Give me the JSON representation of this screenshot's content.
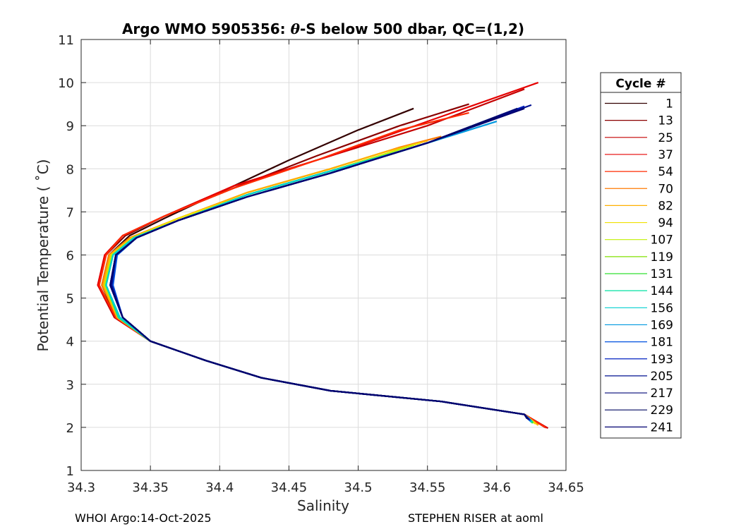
{
  "chart_data": {
    "type": "line",
    "title": "Argo WMO 5905356: θ-S below 500 dbar,  QC=(1,2)",
    "title_prefix": "Argo WMO 5905356: ",
    "title_theta": "θ",
    "title_suffix": "-S below 500 dbar,  QC=(1,2)",
    "xlabel": "Salinity",
    "ylabel": "Potential Temperature ( ˚C)",
    "xlim": [
      34.3,
      34.65
    ],
    "ylim": [
      1,
      11
    ],
    "xticks": [
      "34.3",
      "34.35",
      "34.4",
      "34.45",
      "34.5",
      "34.55",
      "34.6",
      "34.65"
    ],
    "yticks": [
      "1",
      "2",
      "3",
      "4",
      "5",
      "6",
      "7",
      "8",
      "9",
      "10",
      "11"
    ],
    "grid": true,
    "legend_placement": "right-outside",
    "legend_title": "Cycle #",
    "series": [
      {
        "name": "1",
        "color": "#330000",
        "x": [
          34.635,
          34.62,
          34.56,
          34.48,
          34.43,
          34.39,
          34.35,
          34.325,
          34.315,
          34.32,
          34.335,
          34.36,
          34.4,
          34.45,
          34.5,
          34.54
        ],
        "y": [
          2.0,
          2.3,
          2.6,
          2.85,
          3.15,
          3.55,
          4.0,
          4.55,
          5.3,
          6.0,
          6.45,
          6.85,
          7.45,
          8.2,
          8.9,
          9.4
        ]
      },
      {
        "name": "13",
        "color": "#8a0000",
        "x": [
          34.635,
          34.62,
          34.56,
          34.48,
          34.43,
          34.39,
          34.35,
          34.325,
          34.313,
          34.318,
          34.332,
          34.36,
          34.41,
          34.47,
          34.53,
          34.58
        ],
        "y": [
          2.0,
          2.3,
          2.6,
          2.85,
          3.15,
          3.55,
          4.0,
          4.55,
          5.3,
          6.0,
          6.45,
          6.9,
          7.55,
          8.3,
          9.0,
          9.5
        ]
      },
      {
        "name": "25",
        "color": "#c40000",
        "x": [
          34.637,
          34.62,
          34.56,
          34.48,
          34.43,
          34.39,
          34.35,
          34.324,
          34.312,
          34.317,
          34.33,
          34.36,
          34.41,
          34.48,
          34.55,
          34.62
        ],
        "y": [
          1.98,
          2.3,
          2.6,
          2.85,
          3.15,
          3.55,
          4.0,
          4.55,
          5.3,
          6.0,
          6.45,
          6.9,
          7.6,
          8.3,
          9.0,
          9.85
        ]
      },
      {
        "name": "37",
        "color": "#e60000",
        "x": [
          34.636,
          34.62,
          34.56,
          34.48,
          34.43,
          34.39,
          34.35,
          34.325,
          34.312,
          34.317,
          34.33,
          34.36,
          34.41,
          34.48,
          34.55,
          34.63
        ],
        "y": [
          1.99,
          2.3,
          2.6,
          2.85,
          3.15,
          3.55,
          4.0,
          4.55,
          5.3,
          6.0,
          6.45,
          6.9,
          7.6,
          8.3,
          9.1,
          10.0
        ]
      },
      {
        "name": "54",
        "color": "#ff2a00",
        "x": [
          34.635,
          34.62,
          34.56,
          34.48,
          34.43,
          34.39,
          34.35,
          34.325,
          34.313,
          34.318,
          34.33,
          34.36,
          34.41,
          34.47,
          34.53,
          34.58
        ],
        "y": [
          2.0,
          2.3,
          2.6,
          2.85,
          3.15,
          3.55,
          4.0,
          4.55,
          5.3,
          6.0,
          6.45,
          6.9,
          7.55,
          8.2,
          8.9,
          9.3
        ]
      },
      {
        "name": "70",
        "color": "#ff7a00",
        "x": [
          34.63,
          34.62,
          34.56,
          34.48,
          34.43,
          34.39,
          34.35,
          34.326,
          34.315,
          34.32,
          34.335,
          34.37,
          34.42,
          34.48,
          34.53,
          34.56
        ],
        "y": [
          2.05,
          2.3,
          2.6,
          2.85,
          3.15,
          3.55,
          4.0,
          4.55,
          5.3,
          6.0,
          6.4,
          6.85,
          7.45,
          8.0,
          8.5,
          8.75
        ]
      },
      {
        "name": "82",
        "color": "#ffb000",
        "x": [
          34.63,
          34.62,
          34.56,
          34.48,
          34.43,
          34.39,
          34.35,
          34.326,
          34.316,
          34.321,
          34.336,
          34.37,
          34.42,
          34.48,
          34.52,
          34.55
        ],
        "y": [
          2.05,
          2.3,
          2.6,
          2.85,
          3.15,
          3.55,
          4.0,
          4.55,
          5.3,
          6.0,
          6.4,
          6.85,
          7.45,
          8.0,
          8.4,
          8.65
        ]
      },
      {
        "name": "94",
        "color": "#f0e000",
        "x": [
          34.628,
          34.62,
          34.56,
          34.48,
          34.43,
          34.39,
          34.35,
          34.327,
          34.317,
          34.322,
          34.337,
          34.37,
          34.42,
          34.48,
          34.52,
          34.545
        ],
        "y": [
          2.08,
          2.3,
          2.6,
          2.85,
          3.15,
          3.55,
          4.0,
          4.55,
          5.3,
          6.0,
          6.4,
          6.85,
          7.4,
          7.95,
          8.35,
          8.6
        ]
      },
      {
        "name": "107",
        "color": "#c0f000",
        "x": [
          34.627,
          34.62,
          34.56,
          34.48,
          34.43,
          34.39,
          34.35,
          34.327,
          34.317,
          34.322,
          34.338,
          34.37,
          34.42,
          34.48,
          34.52,
          34.54
        ],
        "y": [
          2.1,
          2.3,
          2.6,
          2.85,
          3.15,
          3.55,
          4.0,
          4.55,
          5.3,
          6.0,
          6.4,
          6.8,
          7.4,
          7.95,
          8.35,
          8.55
        ]
      },
      {
        "name": "119",
        "color": "#80e000",
        "x": [
          34.626,
          34.62,
          34.56,
          34.48,
          34.43,
          34.39,
          34.35,
          34.327,
          34.318,
          34.323,
          34.338,
          34.37,
          34.42,
          34.48,
          34.52,
          34.54
        ],
        "y": [
          2.1,
          2.3,
          2.6,
          2.85,
          3.15,
          3.55,
          4.0,
          4.55,
          5.3,
          6.0,
          6.4,
          6.8,
          7.4,
          7.95,
          8.3,
          8.5
        ]
      },
      {
        "name": "131",
        "color": "#30e030",
        "x": [
          34.626,
          34.62,
          34.56,
          34.48,
          34.43,
          34.39,
          34.35,
          34.327,
          34.318,
          34.323,
          34.338,
          34.37,
          34.42,
          34.48,
          34.52,
          34.545
        ],
        "y": [
          2.1,
          2.3,
          2.6,
          2.85,
          3.15,
          3.55,
          4.0,
          4.55,
          5.3,
          6.0,
          6.4,
          6.8,
          7.4,
          7.95,
          8.3,
          8.55
        ]
      },
      {
        "name": "144",
        "color": "#00e0a0",
        "x": [
          34.626,
          34.62,
          34.56,
          34.48,
          34.43,
          34.39,
          34.35,
          34.327,
          34.318,
          34.323,
          34.338,
          34.37,
          34.42,
          34.48,
          34.53,
          34.56
        ],
        "y": [
          2.12,
          2.3,
          2.6,
          2.85,
          3.15,
          3.55,
          4.0,
          4.55,
          5.3,
          6.0,
          6.4,
          6.8,
          7.4,
          7.95,
          8.4,
          8.7
        ]
      },
      {
        "name": "156",
        "color": "#00d0d0",
        "x": [
          34.625,
          34.62,
          34.56,
          34.48,
          34.43,
          34.39,
          34.35,
          34.328,
          34.318,
          34.323,
          34.338,
          34.37,
          34.42,
          34.48,
          34.54,
          34.58
        ],
        "y": [
          2.12,
          2.3,
          2.6,
          2.85,
          3.15,
          3.55,
          4.0,
          4.55,
          5.3,
          6.0,
          6.4,
          6.8,
          7.4,
          7.95,
          8.5,
          8.9
        ]
      },
      {
        "name": "169",
        "color": "#0098e0",
        "x": [
          34.625,
          34.62,
          34.56,
          34.48,
          34.43,
          34.39,
          34.35,
          34.33,
          34.322,
          34.326,
          34.34,
          34.37,
          34.42,
          34.48,
          34.54,
          34.6
        ],
        "y": [
          2.15,
          2.3,
          2.6,
          2.85,
          3.15,
          3.55,
          4.0,
          4.55,
          5.3,
          6.0,
          6.4,
          6.8,
          7.35,
          7.9,
          8.5,
          9.1
        ]
      },
      {
        "name": "181",
        "color": "#0050e0",
        "x": [
          34.624,
          34.62,
          34.56,
          34.48,
          34.43,
          34.39,
          34.35,
          34.33,
          34.323,
          34.326,
          34.34,
          34.37,
          34.42,
          34.48,
          34.55,
          34.61
        ],
        "y": [
          2.15,
          2.3,
          2.6,
          2.85,
          3.15,
          3.55,
          4.0,
          4.55,
          5.3,
          6.0,
          6.4,
          6.8,
          7.35,
          7.9,
          8.6,
          9.3
        ]
      },
      {
        "name": "193",
        "color": "#0020c0",
        "x": [
          34.624,
          34.62,
          34.56,
          34.48,
          34.43,
          34.39,
          34.35,
          34.33,
          34.322,
          34.325,
          34.34,
          34.37,
          34.42,
          34.48,
          34.55,
          34.62
        ],
        "y": [
          2.17,
          2.3,
          2.6,
          2.85,
          3.15,
          3.55,
          4.0,
          4.55,
          5.3,
          6.0,
          6.4,
          6.8,
          7.35,
          7.9,
          8.6,
          9.45
        ]
      },
      {
        "name": "205",
        "color": "#001090",
        "x": [
          34.623,
          34.62,
          34.56,
          34.48,
          34.43,
          34.39,
          34.35,
          34.33,
          34.322,
          34.325,
          34.34,
          34.37,
          34.42,
          34.48,
          34.55,
          34.625
        ],
        "y": [
          2.18,
          2.3,
          2.6,
          2.85,
          3.15,
          3.55,
          4.0,
          4.55,
          5.3,
          6.0,
          6.4,
          6.8,
          7.35,
          7.9,
          8.6,
          9.48
        ]
      },
      {
        "name": "217",
        "color": "#000878",
        "x": [
          34.623,
          34.62,
          34.56,
          34.48,
          34.43,
          34.39,
          34.35,
          34.33,
          34.321,
          34.325,
          34.34,
          34.37,
          34.42,
          34.48,
          34.55,
          34.615
        ],
        "y": [
          2.18,
          2.3,
          2.6,
          2.85,
          3.15,
          3.55,
          4.0,
          4.55,
          5.3,
          6.0,
          6.4,
          6.8,
          7.35,
          7.9,
          8.6,
          9.4
        ]
      },
      {
        "name": "229",
        "color": "#000860",
        "x": [
          34.622,
          34.62,
          34.56,
          34.48,
          34.43,
          34.39,
          34.35,
          34.33,
          34.321,
          34.325,
          34.34,
          34.37,
          34.42,
          34.48,
          34.55,
          34.6
        ],
        "y": [
          2.2,
          2.3,
          2.6,
          2.85,
          3.15,
          3.55,
          4.0,
          4.55,
          5.3,
          6.0,
          6.4,
          6.8,
          7.35,
          7.9,
          8.6,
          9.2
        ]
      },
      {
        "name": "241",
        "color": "#000070",
        "x": [
          34.622,
          34.62,
          34.56,
          34.48,
          34.43,
          34.39,
          34.35,
          34.33,
          34.321,
          34.325,
          34.34,
          34.37,
          34.42,
          34.48,
          34.55,
          34.62
        ],
        "y": [
          2.2,
          2.3,
          2.6,
          2.85,
          3.15,
          3.55,
          4.0,
          4.55,
          5.3,
          6.0,
          6.4,
          6.8,
          7.35,
          7.9,
          8.6,
          9.4
        ]
      }
    ]
  },
  "footer": {
    "left": "WHOI Argo:14-Oct-2025",
    "right": "STEPHEN RISER at aoml"
  }
}
